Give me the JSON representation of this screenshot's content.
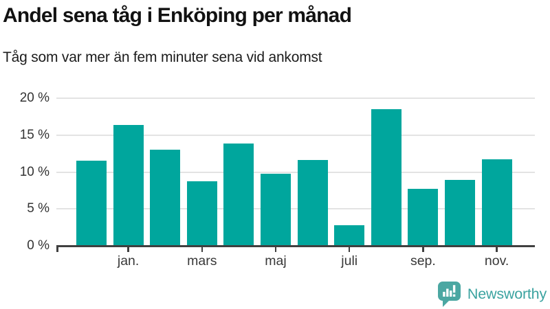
{
  "header": {
    "title": "Andel sena tåg i Enköping per månad",
    "subtitle": "Tåg som var mer än fem minuter sena vid ankomst"
  },
  "chart_data": {
    "type": "bar",
    "title": "Andel sena tåg i Enköping per månad",
    "subtitle": "Tåg som var mer än fem minuter sena vid ankomst",
    "unit": "%",
    "values": [
      11.5,
      16.4,
      13.0,
      8.7,
      13.9,
      9.8,
      11.6,
      2.8,
      18.5,
      7.7,
      8.9,
      11.7
    ],
    "categories": [
      "",
      "jan.",
      "",
      "mars",
      "",
      "maj",
      "",
      "juli",
      "",
      "sep.",
      "",
      "nov."
    ],
    "x_tick_labels": [
      "jan.",
      "mars",
      "maj",
      "juli",
      "sep.",
      "nov."
    ],
    "y_tick_labels": [
      "0 %",
      "5 %",
      "10 %",
      "15 %",
      "20 %"
    ],
    "y_tick_values": [
      0,
      5,
      10,
      15,
      20
    ],
    "ylim": [
      0,
      20
    ],
    "grid": true,
    "legend": false,
    "bar_color": "#00a69d",
    "grid_color": "#e3e3e3",
    "axis_color": "#3f3f3f",
    "tick_label_color": "#333333"
  },
  "branding": {
    "logo_text": "Newsworthy",
    "logo_color": "#3ba3a0",
    "icon_color": "#4ba7a2"
  }
}
